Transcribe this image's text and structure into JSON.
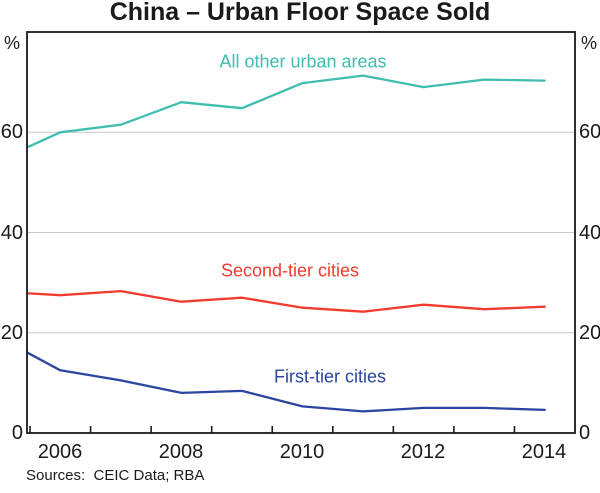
{
  "title": "China – Urban Floor Space Sold",
  "footer": "Sources:  CEIC Data; RBA",
  "axis": {
    "unit": "%",
    "y_ticks": [
      0,
      20,
      40,
      60
    ],
    "x_labels": [
      "2006",
      "2008",
      "2010",
      "2012",
      "2014"
    ]
  },
  "colors": {
    "all_other_urban_areas": "#3FBDAE",
    "second_tier_cities": "#F23B2E",
    "first_tier_cities": "#2A46A0",
    "gridline": "#C9C9C9",
    "axis": "#1a1a1a"
  },
  "chart_data": {
    "type": "line",
    "title": "China – Urban Floor Space Sold",
    "xlabel": "",
    "ylabel": "%",
    "x": [
      2005,
      2006,
      2007,
      2008,
      2009,
      2010,
      2011,
      2012,
      2013,
      2014
    ],
    "xlim": [
      2005.45,
      2014.5
    ],
    "ylim": [
      0,
      80
    ],
    "gridlines": [
      20,
      40,
      60
    ],
    "grid": "horizontal only, light grey; black frame box; bottom-axis ticks at each half-year",
    "legend_position": "inline labels near each line",
    "series": [
      {
        "name": "All other urban areas",
        "color": "#3FBDAE",
        "values": [
          54.5,
          60.0,
          61.5,
          66.0,
          64.8,
          69.8,
          71.3,
          69.0,
          70.5,
          70.3
        ]
      },
      {
        "name": "Second-tier cities",
        "color": "#F23B2E",
        "values": [
          28.2,
          27.5,
          28.3,
          26.2,
          27.0,
          25.0,
          24.2,
          25.6,
          24.7,
          25.2
        ]
      },
      {
        "name": "First-tier cities",
        "color": "#2A46A0",
        "values": [
          19.0,
          12.5,
          10.5,
          8.0,
          8.4,
          5.3,
          4.3,
          5.0,
          5.0,
          4.6
        ]
      }
    ]
  }
}
